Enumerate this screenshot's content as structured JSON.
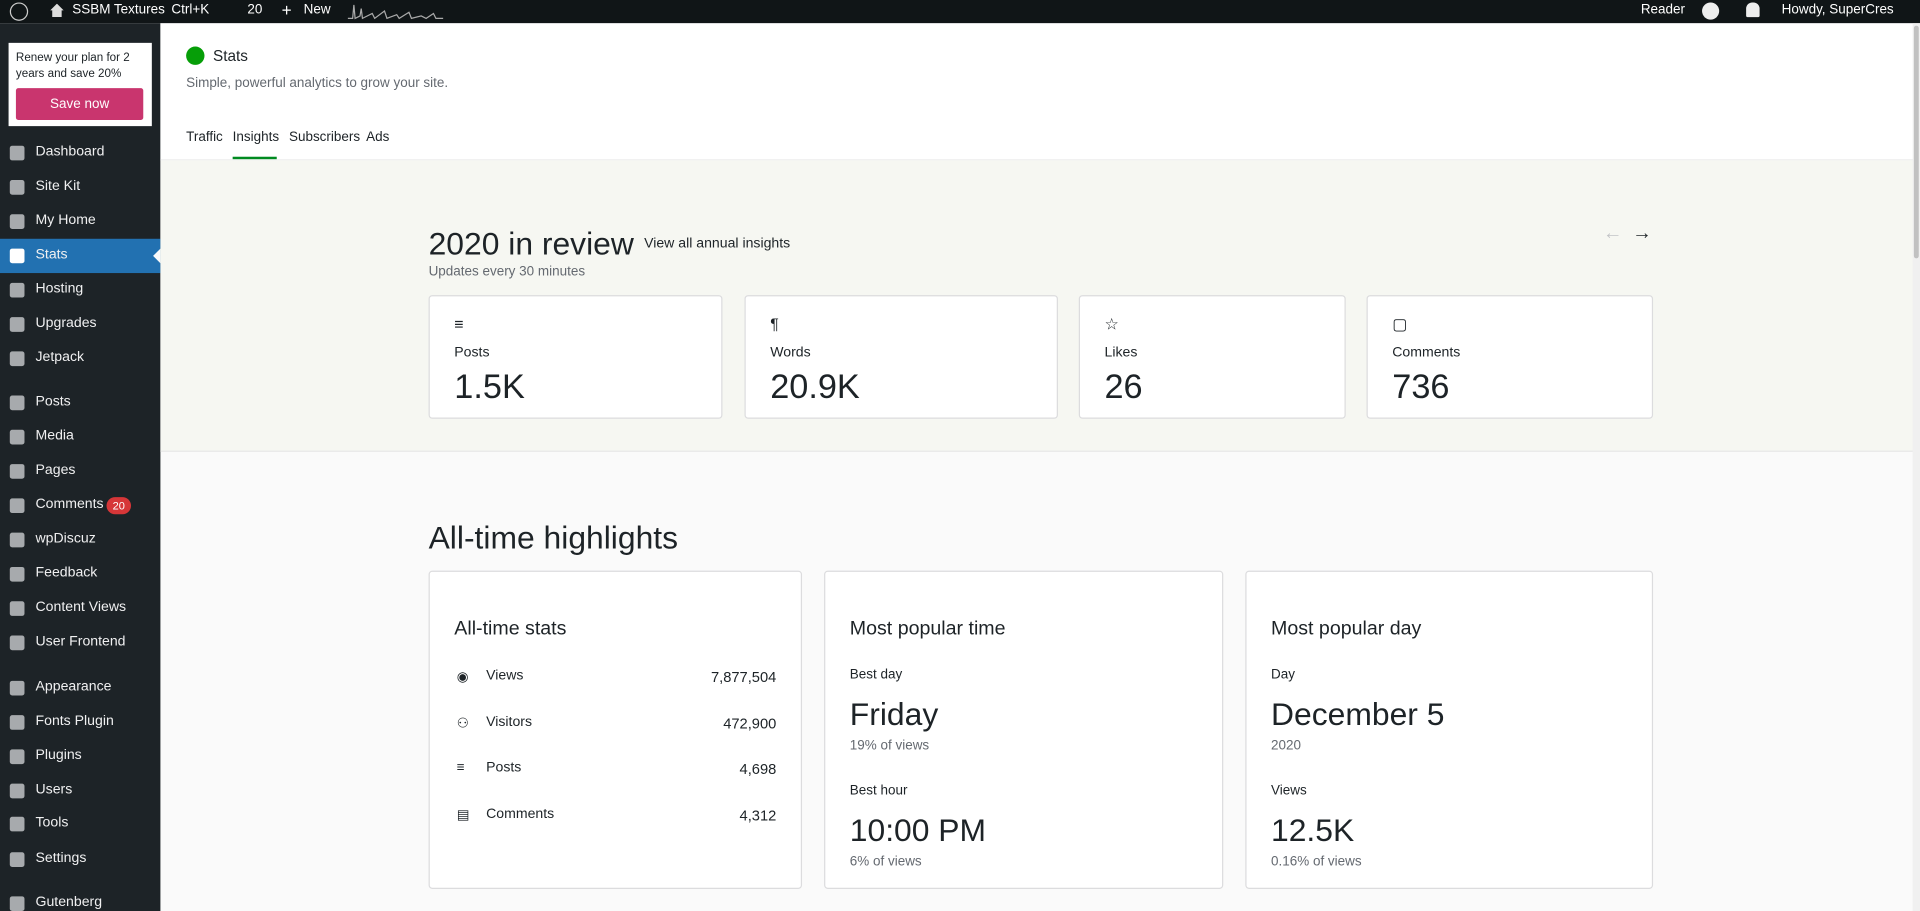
{
  "admin_bar": {
    "site": "SSBM Textures",
    "shortcut": "Ctrl+K",
    "comments": "20",
    "new": "New",
    "reader": "Reader",
    "greeting": "Howdy, SuperCres"
  },
  "promo": {
    "text": "Renew your plan for 2 years and save 20%",
    "button": "Save now"
  },
  "menu": [
    "Dashboard",
    "Site Kit",
    "My Home",
    "Stats",
    "Hosting",
    "Upgrades",
    "Jetpack",
    "Posts",
    "Media",
    "Pages",
    "Comments",
    "wpDiscuz",
    "Feedback",
    "Content Views",
    "User Frontend",
    "Appearance",
    "Fonts Plugin",
    "Plugins",
    "Users",
    "Tools",
    "Settings",
    "Gutenberg"
  ],
  "menu_badge": "20",
  "header": {
    "title": "Stats",
    "subtitle": "Simple, powerful analytics to grow your site."
  },
  "tabs": [
    "Traffic",
    "Insights",
    "Subscribers",
    "Ads"
  ],
  "review": {
    "title": "2020 in review",
    "link": "View all annual insights",
    "note": "Updates every 30 minutes",
    "cards": [
      {
        "label": "Posts",
        "value": "1.5K"
      },
      {
        "label": "Words",
        "value": "20.9K"
      },
      {
        "label": "Likes",
        "value": "26"
      },
      {
        "label": "Comments",
        "value": "736"
      }
    ]
  },
  "highlights": {
    "title": "All-time highlights",
    "all_time": {
      "title": "All-time stats",
      "rows": [
        {
          "label": "Views",
          "value": "7,877,504"
        },
        {
          "label": "Visitors",
          "value": "472,900"
        },
        {
          "label": "Posts",
          "value": "4,698"
        },
        {
          "label": "Comments",
          "value": "4,312"
        }
      ]
    },
    "popular_time": {
      "title": "Most popular time",
      "best_day_label": "Best day",
      "best_day": "Friday",
      "best_day_note": "19% of views",
      "best_hour_label": "Best hour",
      "best_hour": "10:00 PM",
      "best_hour_note": "6% of views"
    },
    "popular_day": {
      "title": "Most popular day",
      "day_label": "Day",
      "day": "December 5",
      "year": "2020",
      "views_label": "Views",
      "views": "12.5K",
      "views_note": "0.16% of views"
    }
  }
}
